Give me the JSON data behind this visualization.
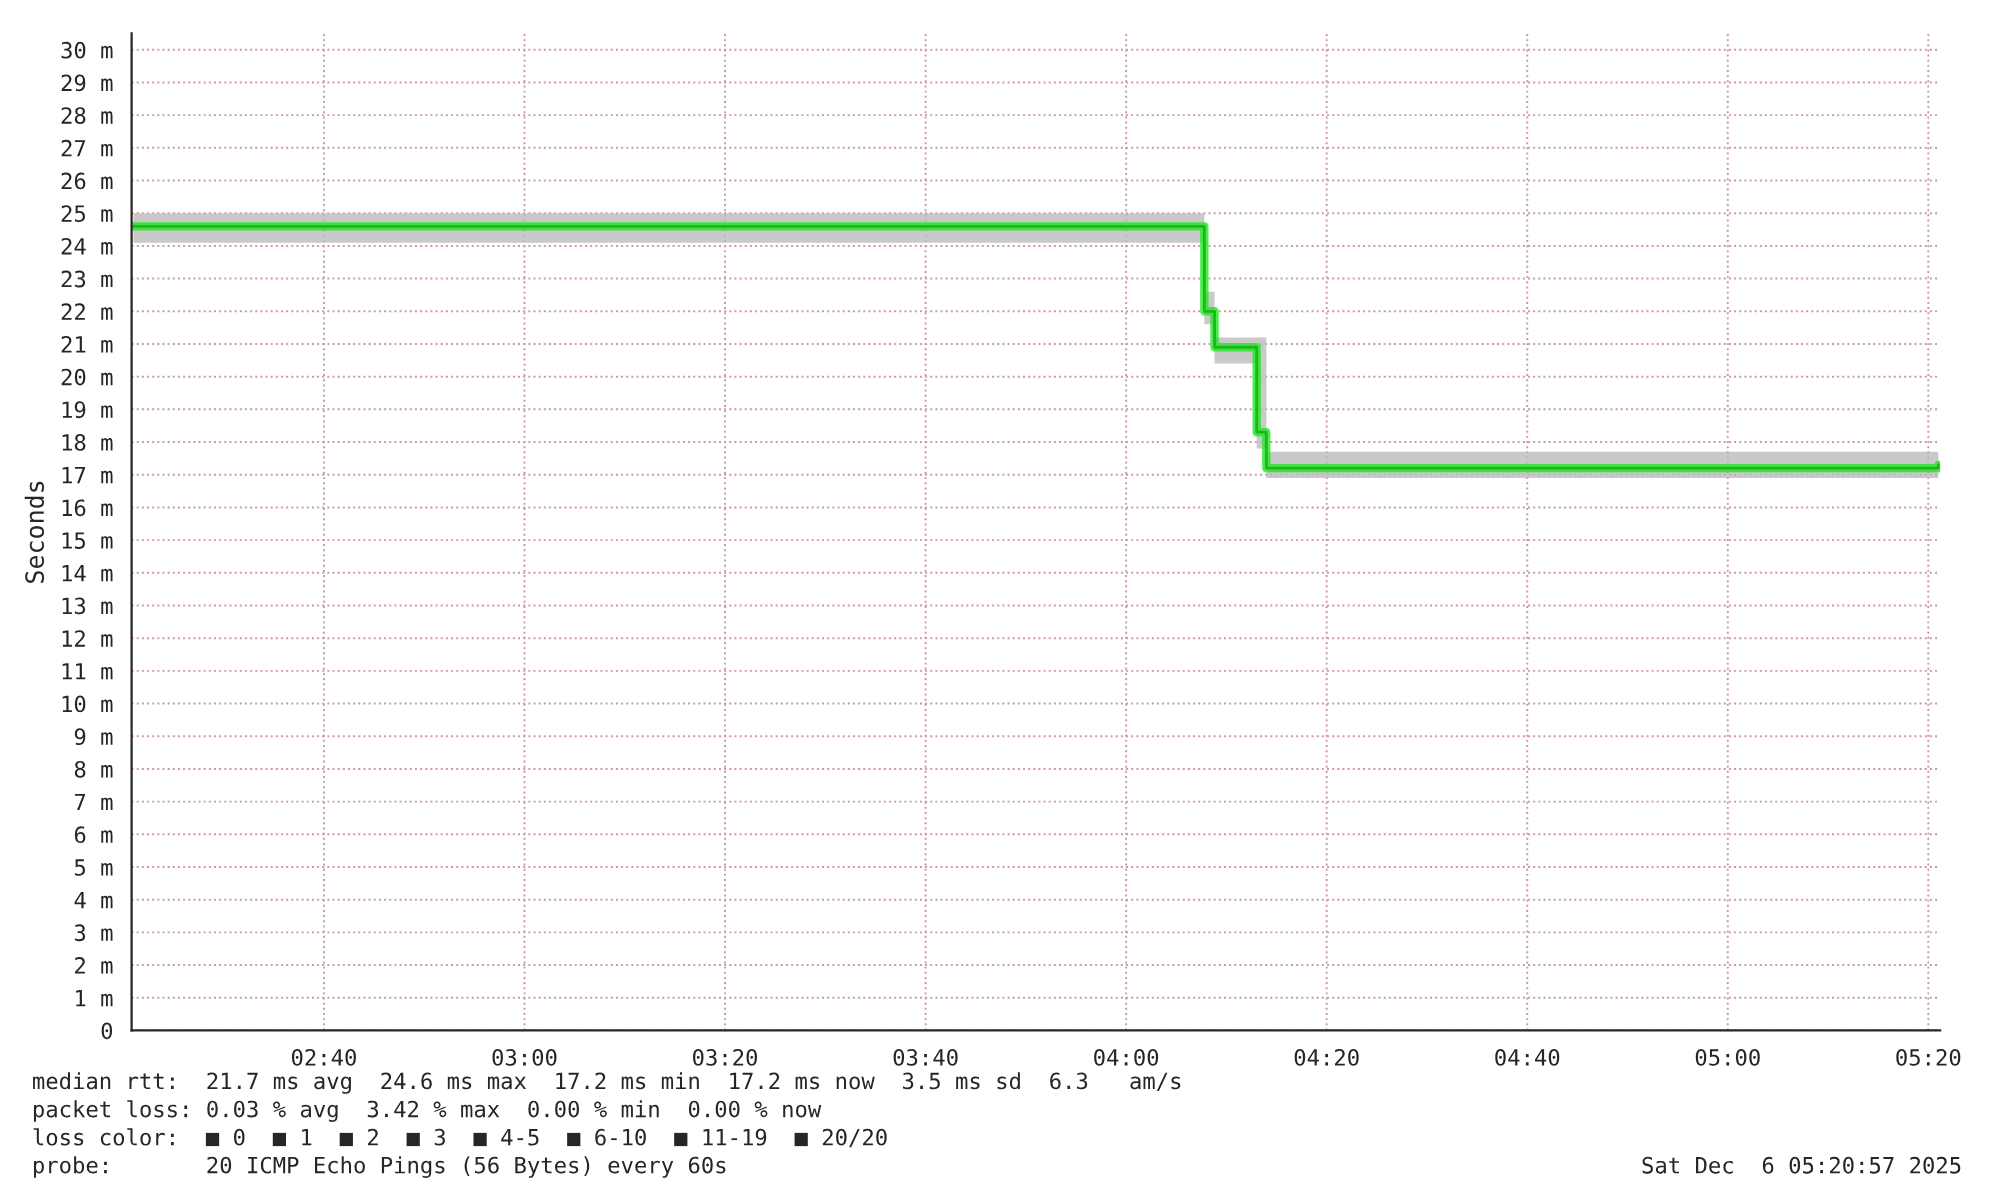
{
  "chart_data": {
    "type": "step",
    "ylabel": "Seconds",
    "x": [
      2.35,
      4.13,
      4.147,
      4.217,
      4.233,
      5.35
    ],
    "series": [
      {
        "color": "#22e622",
        "values": [
          24.6,
          22.0,
          20.9,
          18.3,
          17.2,
          17.3
        ],
        "lower": [
          24.1,
          21.6,
          20.4,
          17.8,
          16.9,
          16.9
        ],
        "upper": [
          25.0,
          22.6,
          21.2,
          21.2,
          17.7,
          17.7
        ]
      }
    ],
    "xlim": [
      2.347,
      5.353
    ],
    "xticks": [
      {
        "value": 2.6667,
        "label": "02:40"
      },
      {
        "value": 3.0,
        "label": "03:00"
      },
      {
        "value": 3.3333,
        "label": "03:20"
      },
      {
        "value": 3.6667,
        "label": "03:40"
      },
      {
        "value": 4.0,
        "label": "04:00"
      },
      {
        "value": 4.3333,
        "label": "04:20"
      },
      {
        "value": 4.6667,
        "label": "04:40"
      },
      {
        "value": 5.0,
        "label": "05:00"
      },
      {
        "value": 5.3333,
        "label": "05:20"
      }
    ],
    "ylim": [
      0,
      30.5
    ],
    "yticks": [
      0,
      {
        "value": 1,
        "label": "1 m"
      },
      {
        "value": 2,
        "label": "2 m"
      },
      {
        "value": 3,
        "label": "3 m"
      },
      {
        "value": 4,
        "label": "4 m"
      },
      {
        "value": 5,
        "label": "5 m"
      },
      {
        "value": 6,
        "label": "6 m"
      },
      {
        "value": 7,
        "label": "7 m"
      },
      {
        "value": 8,
        "label": "8 m"
      },
      {
        "value": 9,
        "label": "9 m"
      },
      {
        "value": 10,
        "label": "10 m"
      },
      {
        "value": 11,
        "label": "11 m"
      },
      {
        "value": 12,
        "label": "12 m"
      },
      {
        "value": 13,
        "label": "13 m"
      },
      {
        "value": 14,
        "label": "14 m"
      },
      {
        "value": 15,
        "label": "15 m"
      },
      {
        "value": 16,
        "label": "16 m"
      },
      {
        "value": 17,
        "label": "17 m"
      },
      {
        "value": 18,
        "label": "18 m"
      },
      {
        "value": 19,
        "label": "19 m"
      },
      {
        "value": 20,
        "label": "20 m"
      },
      {
        "value": 21,
        "label": "21 m"
      },
      {
        "value": 22,
        "label": "22 m"
      },
      {
        "value": 23,
        "label": "23 m"
      },
      {
        "value": 24,
        "label": "24 m"
      },
      {
        "value": 25,
        "label": "25 m"
      },
      {
        "value": 26,
        "label": "26 m"
      },
      {
        "value": 27,
        "label": "27 m"
      },
      {
        "value": 28,
        "label": "28 m"
      },
      {
        "value": 29,
        "label": "29 m"
      },
      {
        "value": 30,
        "label": "30 m"
      }
    ],
    "grid": true,
    "line_style": "solid",
    "annotations": [
      "median rtt:  21.7 ms avg  24.6 ms max  17.2 ms min  17.2 ms now  3.5 ms sd  6.3   am/s",
      "packet loss: 0.03 % avg  3.42 % max  0.00 % min  0.00 % now",
      "loss color:  ■ 0  ■ 1  ■ 2  ■ 3  ■ 4-5  ■ 6-10  ■ 11-19  ■ 20/20",
      "probe:       20 ICMP Echo Pings (56 Bytes) every 60s",
      "Sat Dec  6 05:20:57 2025"
    ]
  }
}
